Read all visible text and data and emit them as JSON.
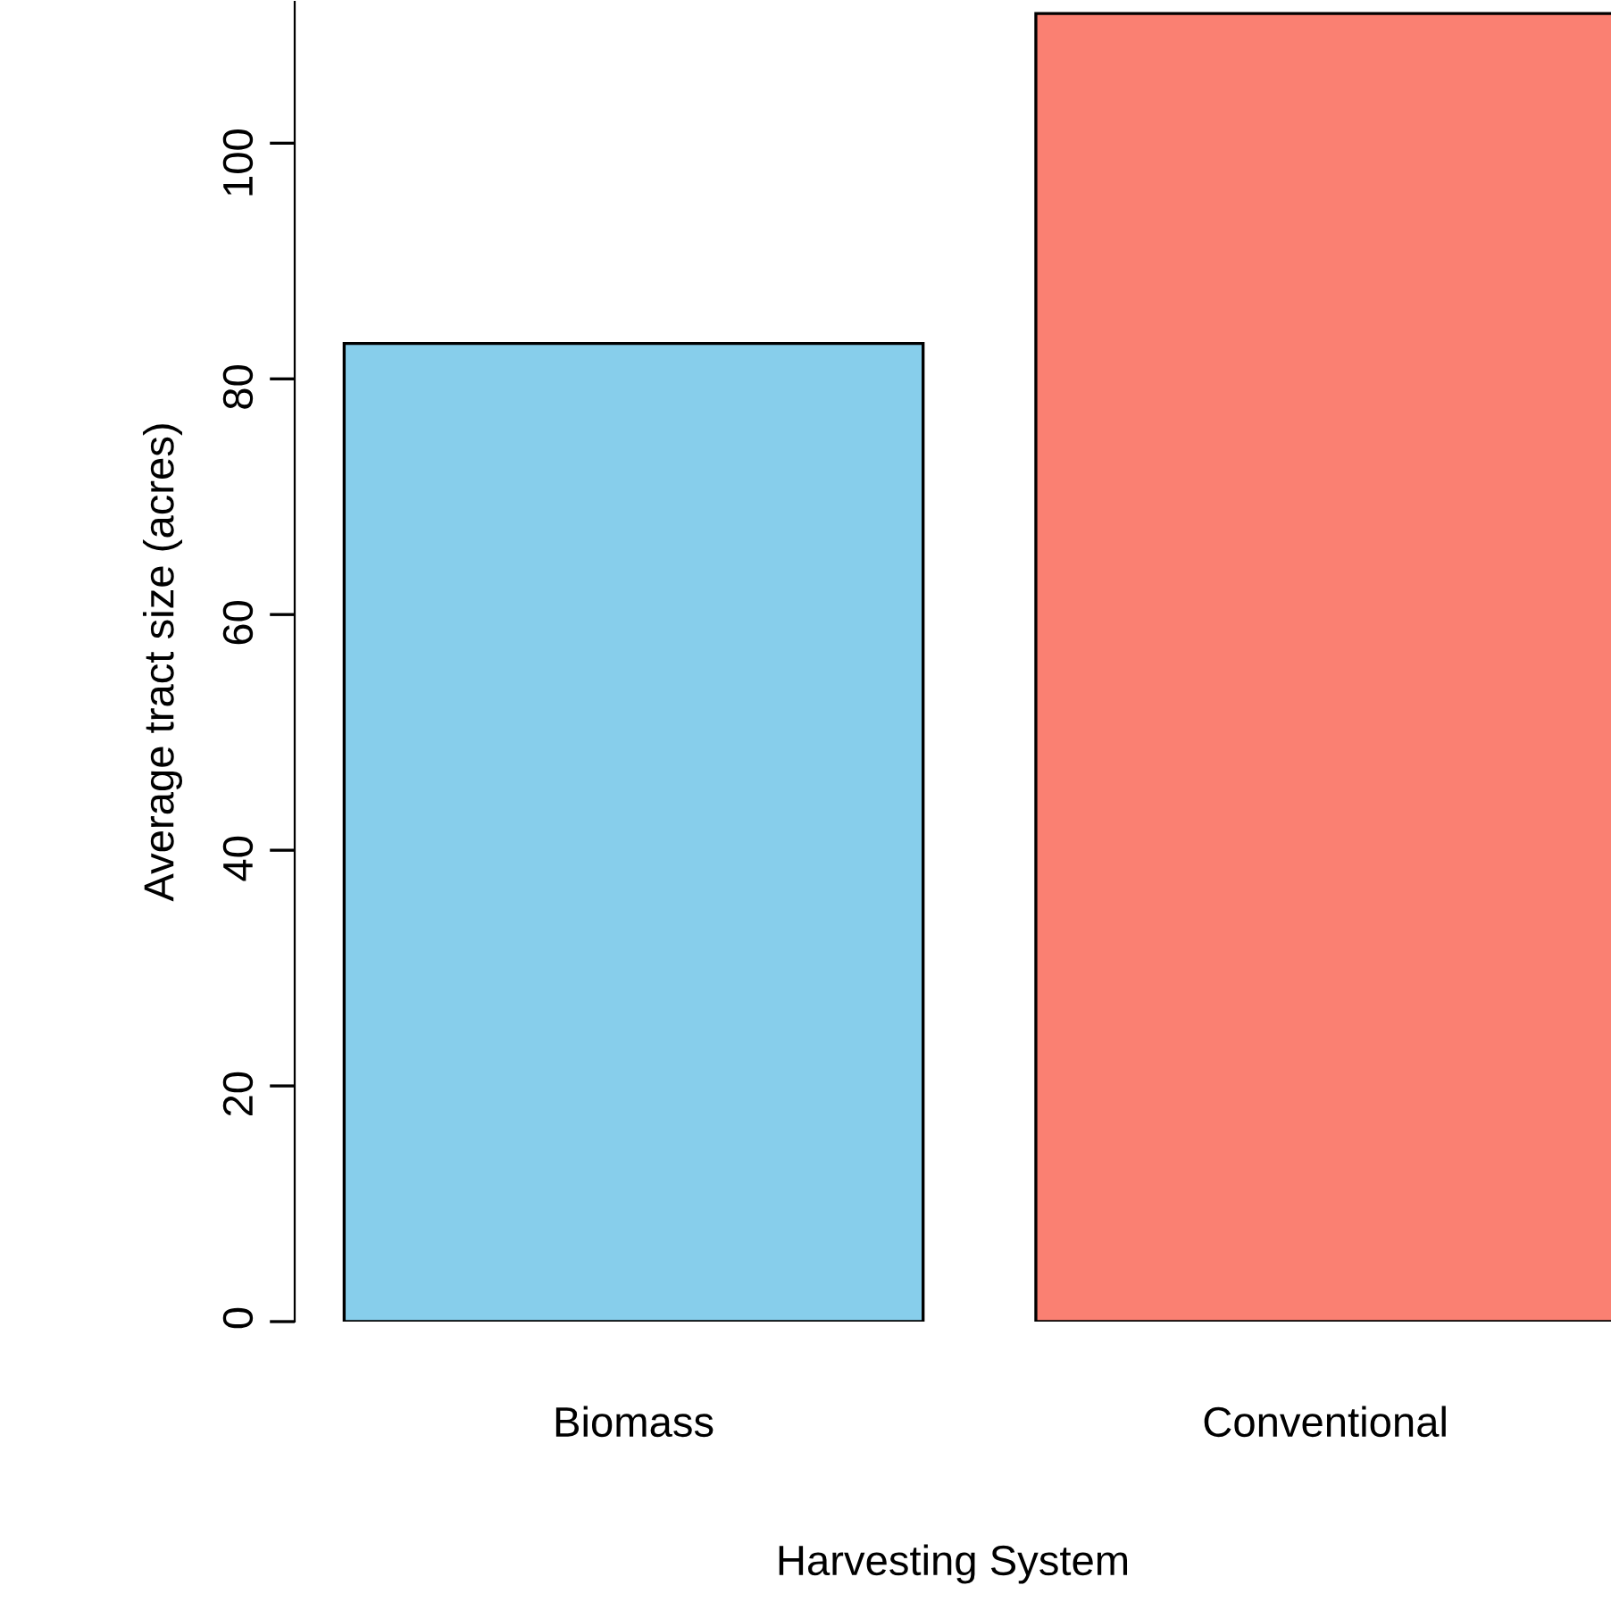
{
  "chart_data": {
    "type": "bar",
    "xlabel": "Harvesting System",
    "ylabel": "Average tract size (acres)",
    "categories": [
      "Biomass",
      "Conventional"
    ],
    "values": [
      83,
      111
    ],
    "colors": [
      "#87ceeb",
      "#fa8072"
    ],
    "ylim": [
      0,
      112
    ],
    "yticks": [
      0,
      20,
      40,
      60,
      80,
      100
    ],
    "grid": false,
    "legend": false
  }
}
